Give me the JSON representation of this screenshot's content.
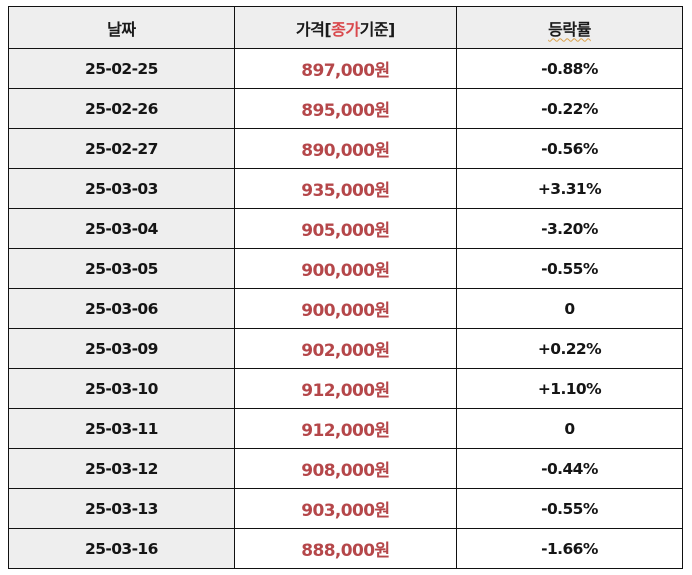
{
  "table": {
    "headers": {
      "date": "날짜",
      "price_prefix": "가격[",
      "price_highlight": "종가",
      "price_suffix": "기준]",
      "change": "등락률"
    },
    "colors": {
      "price_text": "#b5474a",
      "header_highlight": "#d9484c",
      "header_bg": "#eeeeee",
      "date_bg": "#eeeeee"
    },
    "rows": [
      {
        "date": "25-02-25",
        "price": "897,000원",
        "change": "-0.88%"
      },
      {
        "date": "25-02-26",
        "price": "895,000원",
        "change": "-0.22%"
      },
      {
        "date": "25-02-27",
        "price": "890,000원",
        "change": "-0.56%"
      },
      {
        "date": "25-03-03",
        "price": "935,000원",
        "change": "+3.31%"
      },
      {
        "date": "25-03-04",
        "price": "905,000원",
        "change": "-3.20%"
      },
      {
        "date": "25-03-05",
        "price": "900,000원",
        "change": "-0.55%"
      },
      {
        "date": "25-03-06",
        "price": "900,000원",
        "change": "0"
      },
      {
        "date": "25-03-09",
        "price": "902,000원",
        "change": "+0.22%"
      },
      {
        "date": "25-03-10",
        "price": "912,000원",
        "change": "+1.10%"
      },
      {
        "date": "25-03-11",
        "price": "912,000원",
        "change": "0"
      },
      {
        "date": "25-03-12",
        "price": "908,000원",
        "change": "-0.44%"
      },
      {
        "date": "25-03-13",
        "price": "903,000원",
        "change": "-0.55%"
      },
      {
        "date": "25-03-16",
        "price": "888,000원",
        "change": "-1.66%"
      }
    ]
  }
}
